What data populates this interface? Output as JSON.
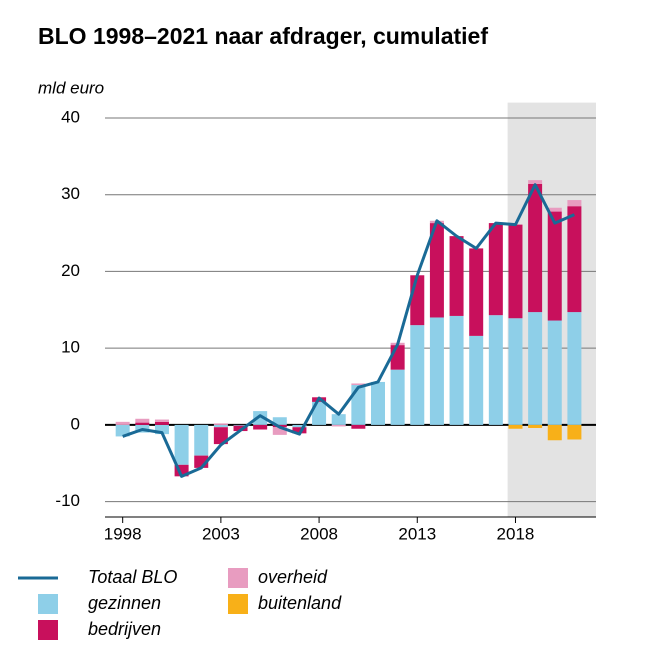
{
  "chart_data": {
    "type": "bar-line",
    "title": "BLO 1998–2021 naar afdrager, cumulatief",
    "y_label": "mld euro",
    "x": [
      1998,
      1999,
      2000,
      2001,
      2002,
      2003,
      2004,
      2005,
      2006,
      2007,
      2008,
      2009,
      2010,
      2011,
      2012,
      2013,
      2014,
      2015,
      2016,
      2017,
      2018,
      2019,
      2020,
      2021
    ],
    "series": [
      {
        "name": "Totaal BLO",
        "kind": "line",
        "color": "#1a6a96",
        "values": [
          -1.5,
          -0.6,
          -1.0,
          -6.7,
          -5.6,
          -2.6,
          -0.7,
          1.2,
          -0.3,
          -1.2,
          3.5,
          1.4,
          4.9,
          5.6,
          10.5,
          19.5,
          26.6,
          24.6,
          23.0,
          26.3,
          26.1,
          31.3,
          26.3,
          27.4
        ]
      },
      {
        "name": "gezinnen",
        "kind": "bar",
        "color": "#8ecfe8",
        "values": [
          -1.5,
          -1.0,
          -1.2,
          -5.2,
          -4.0,
          -0.3,
          -0.1,
          1.8,
          1.0,
          -0.3,
          3.0,
          1.4,
          5.2,
          5.6,
          7.2,
          13.0,
          14.0,
          14.2,
          11.6,
          14.3,
          13.9,
          14.7,
          13.6,
          14.7
        ]
      },
      {
        "name": "bedrijven",
        "kind": "bar",
        "color": "#c8105c",
        "values": [
          0,
          0.3,
          0.4,
          -1.5,
          -1.6,
          -2.2,
          -0.7,
          -0.6,
          -0.3,
          -0.8,
          0.6,
          0,
          -0.5,
          0,
          3.2,
          6.5,
          12.3,
          10.4,
          11.4,
          12.0,
          12.2,
          16.7,
          14.2,
          13.8
        ]
      },
      {
        "name": "overheid",
        "kind": "bar",
        "color": "#e89cc0",
        "values": [
          0.4,
          0.5,
          0.3,
          0,
          0,
          0.2,
          0,
          0,
          -1.0,
          0,
          0,
          -0.2,
          0.2,
          0,
          0.3,
          0,
          0.3,
          0,
          0,
          0,
          0,
          0.5,
          0.5,
          0.8
        ]
      },
      {
        "name": "buitenland",
        "kind": "bar",
        "color": "#f8b018",
        "values": [
          0,
          0,
          0,
          0,
          0,
          0,
          0,
          0,
          0,
          0,
          0,
          0,
          0,
          0,
          0,
          0,
          0,
          0,
          0,
          0,
          -0.5,
          -0.4,
          -2.0,
          -1.9
        ]
      }
    ],
    "xlim": [
      1997.1,
      2022.1
    ],
    "xticks": [
      1998,
      2003,
      2008,
      2013,
      2018
    ],
    "ylim": [
      -12,
      42
    ],
    "yticks": [
      -10,
      0,
      10,
      20,
      30,
      40
    ],
    "grid": true,
    "shaded_xlim": [
      2017.6,
      2022.1
    ],
    "shade_color": "#e3e3e3"
  }
}
